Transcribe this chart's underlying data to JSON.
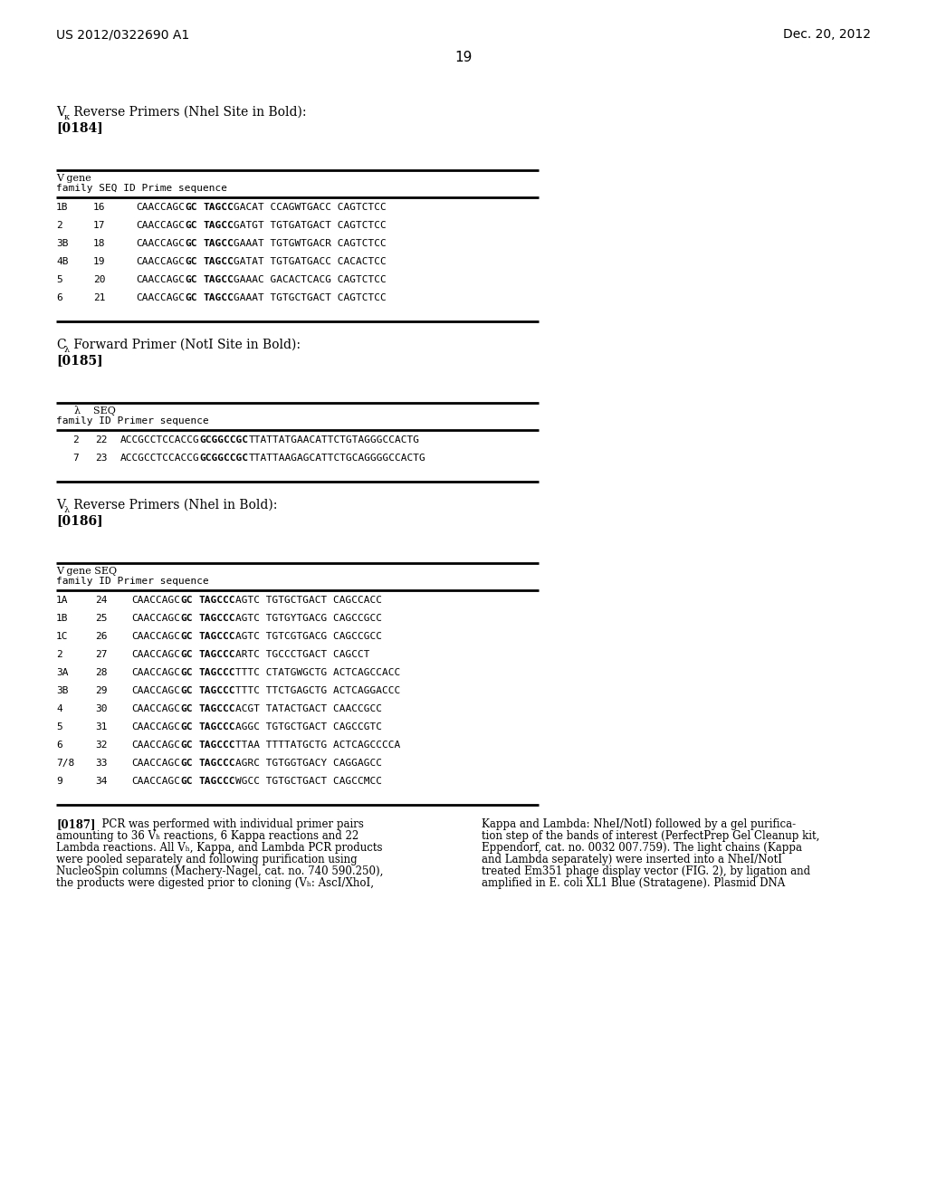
{
  "page_number": "19",
  "header_left": "US 2012/0322690 A1",
  "header_right": "Dec. 20, 2012",
  "bg_color": "#ffffff",
  "table1_bold_rows": [
    [
      "1B",
      "16",
      "CAACCAGC",
      "GC",
      " ",
      "TAGCC",
      "GACAT CCAGWTGACC CAGTCTCC"
    ],
    [
      "2",
      "17",
      "CAACCAGC",
      "GC",
      " ",
      "TAGCC",
      "GATGT TGTGATGACT CAGTCTCC"
    ],
    [
      "3B",
      "18",
      "CAACCAGC",
      "GC",
      " ",
      "TAGCC",
      "GAAAT TGTGWTGACR CAGTCTCC"
    ],
    [
      "4B",
      "19",
      "CAACCAGC",
      "GC",
      " ",
      "TAGCC",
      "GATAT TGTGATGACC CACACTCC"
    ],
    [
      "5",
      "20",
      "CAACCAGC",
      "GC",
      " ",
      "TAGCC",
      "GAAAC GACACTCACG CAGTCTCC"
    ],
    [
      "6",
      "21",
      "CAACCAGC",
      "GC",
      " ",
      "TAGCC",
      "GAAAT TGTGCTGACT CAGTCTCC"
    ]
  ],
  "table2_bold_rows": [
    [
      "2",
      "22",
      "ACCGCCTCCACCG",
      "GCGGCCGC",
      "TTATTATGAACATTCTGTAGGGCCACTG"
    ],
    [
      "7",
      "23",
      "ACCGCCTCCACCG",
      "GCGGCCGC",
      "TTATTAAGAGCATTCTGCAGGGGCCACTG"
    ]
  ],
  "table3_bold_rows": [
    [
      "1A",
      "24",
      "CAACCAGC",
      "GC",
      " ",
      "TAGCCC",
      "AGTC TGTGCTGACT CAGCCACC"
    ],
    [
      "1B",
      "25",
      "CAACCAGC",
      "GC",
      " ",
      "TAGCCC",
      "AGTC TGTGYTGACG CAGCCGCC"
    ],
    [
      "1C",
      "26",
      "CAACCAGC",
      "GC",
      " ",
      "TAGCCC",
      "AGTC TGTCGTGACG CAGCCGCC"
    ],
    [
      "2",
      "27",
      "CAACCAGC",
      "GC",
      " ",
      "TAGCCC",
      "ARTC TGCCCTGACT CAGCCT"
    ],
    [
      "3A",
      "28",
      "CAACCAGC",
      "GC",
      " ",
      "TAGCCC",
      "TTTC CTATGWGCTG ACTCAGCCACC"
    ],
    [
      "3B",
      "29",
      "CAACCAGC",
      "GC",
      " ",
      "TAGCCC",
      "TTTC TTCTGAGCTG ACTCAGGACCC"
    ],
    [
      "4",
      "30",
      "CAACCAGC",
      "GC",
      " ",
      "TAGCCC",
      "ACGT TATACTGACT CAACCGCC"
    ],
    [
      "5",
      "31",
      "CAACCAGC",
      "GC",
      " ",
      "TAGCCC",
      "AGGC TGTGCTGACT CAGCCGTC"
    ],
    [
      "6",
      "32",
      "CAACCAGC",
      "GC",
      " ",
      "TAGCCC",
      "TTAA TTTTATGCTG ACTCAGCCCCA"
    ],
    [
      "7/8",
      "33",
      "CAACCAGC",
      "GC",
      " ",
      "TAGCCC",
      "AGRC TGTGGTGACY CAGGAGCC"
    ],
    [
      "9",
      "34",
      "CAACCAGC",
      "GC",
      " ",
      "TAGCCC",
      "WGCC TGTGCTGACT CAGCCMCC"
    ]
  ],
  "para187_left_lines": [
    "[0187]   PCR was performed with individual primer pairs",
    "amounting to 36 Vₕ reactions, 6 Kappa reactions and 22",
    "Lambda reactions. All Vₕ, Kappa, and Lambda PCR products",
    "were pooled separately and following purification using",
    "NucleoSpin columns (Machery-Nagel, cat. no. 740 590.250),",
    "the products were digested prior to cloning (Vₕ: AscI/XhoI,"
  ],
  "para187_right_lines": [
    "Kappa and Lambda: NheI/NotI) followed by a gel purifica-",
    "tion step of the bands of interest (PerfectPrep Gel Cleanup kit,",
    "Eppendorf, cat. no. 0032 007.759). The light chains (Kappa",
    "and Lambda separately) were inserted into a NheI/NotI",
    "treated Em351 phage display vector (FIG. 2), by ligation and",
    "amplified in E. coli XL1 Blue (Stratagene). Plasmid DNA"
  ]
}
